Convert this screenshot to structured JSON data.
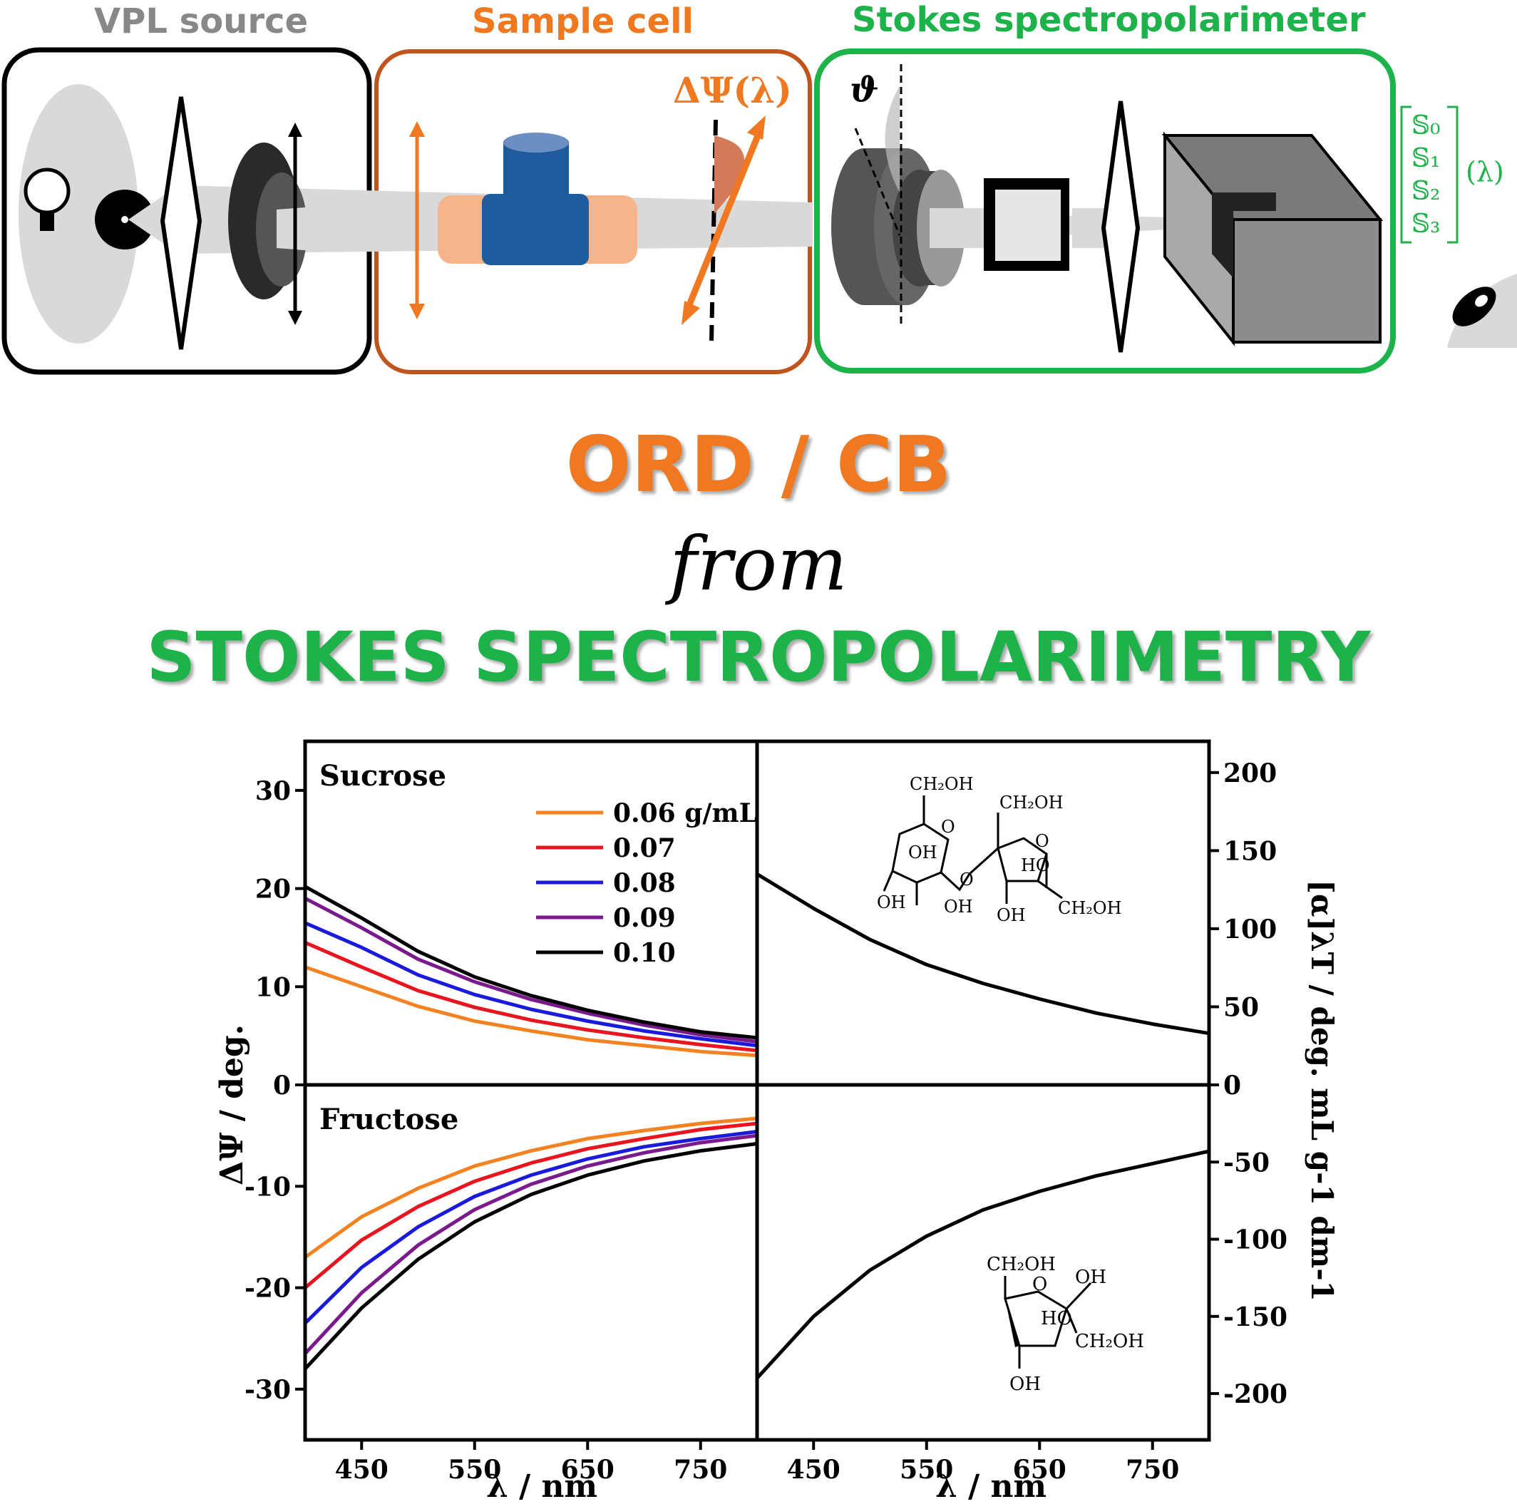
{
  "schematic": {
    "source_label": "VPL source",
    "sample_label": "Sample cell",
    "polarimeter_label": "Stokes spectropolarimeter",
    "rotation_label": "ΔΨ(λ)",
    "analyzer_angle_label": "ϑ",
    "stokes": [
      "𝕊₀",
      "𝕊₁",
      "𝕊₂",
      "𝕊₃"
    ],
    "stokes_suffix": "(λ)",
    "colors": {
      "source": "#888888",
      "sample": "#f07820",
      "sample_box": "#c0541c",
      "polarimeter": "#1db34a"
    }
  },
  "headline": {
    "line1": "ORD / CB",
    "line2": "from",
    "line3": "STOKES SPECTROPOLARIMETRY"
  },
  "chart_data": [
    {
      "type": "line",
      "panel": "top-left",
      "label": "Sucrose",
      "ylabel": "ΔΨ / deg.",
      "ylim": [
        0,
        35
      ],
      "yticks": [
        0,
        10,
        20,
        30
      ],
      "xlim": [
        400,
        800
      ],
      "x": [
        400,
        450,
        500,
        550,
        600,
        650,
        700,
        750,
        800
      ],
      "series": [
        {
          "name": "0.06 g/mL",
          "color": "#f58220",
          "values": [
            12.0,
            10.0,
            8.0,
            6.5,
            5.5,
            4.6,
            4.0,
            3.4,
            3.0
          ]
        },
        {
          "name": "0.07",
          "color": "#e8141e",
          "values": [
            14.5,
            12.0,
            9.6,
            7.9,
            6.6,
            5.6,
            4.8,
            4.1,
            3.5
          ]
        },
        {
          "name": "0.08",
          "color": "#1a1adc",
          "values": [
            16.5,
            14.0,
            11.2,
            9.2,
            7.7,
            6.5,
            5.5,
            4.7,
            4.0
          ]
        },
        {
          "name": "0.09",
          "color": "#7a1a8c",
          "values": [
            19.0,
            16.0,
            12.8,
            10.5,
            8.7,
            7.3,
            6.1,
            5.1,
            4.4
          ]
        },
        {
          "name": "0.10",
          "color": "#000000",
          "values": [
            20.2,
            17.0,
            13.6,
            11.0,
            9.1,
            7.6,
            6.4,
            5.4,
            4.8
          ]
        }
      ],
      "legend": "top-right"
    },
    {
      "type": "line",
      "panel": "bottom-left",
      "label": "Fructose",
      "ylim": [
        -35,
        0
      ],
      "yticks": [
        -10,
        -20,
        -30
      ],
      "xlim": [
        400,
        800
      ],
      "x": [
        400,
        450,
        500,
        550,
        600,
        650,
        700,
        750,
        800
      ],
      "xticks": [
        450,
        550,
        650,
        750
      ],
      "xlabel": "λ / nm",
      "series": [
        {
          "name": "0.06 g/mL",
          "color": "#f58220",
          "values": [
            -17.0,
            -13.0,
            -10.2,
            -8.0,
            -6.5,
            -5.3,
            -4.5,
            -3.8,
            -3.3
          ]
        },
        {
          "name": "0.07",
          "color": "#e8141e",
          "values": [
            -20.0,
            -15.3,
            -12.0,
            -9.5,
            -7.7,
            -6.3,
            -5.3,
            -4.4,
            -3.8
          ]
        },
        {
          "name": "0.08",
          "color": "#1a1adc",
          "values": [
            -23.5,
            -18.0,
            -14.0,
            -11.0,
            -8.9,
            -7.3,
            -6.1,
            -5.3,
            -4.6
          ]
        },
        {
          "name": "0.09",
          "color": "#7a1a8c",
          "values": [
            -26.5,
            -20.5,
            -15.8,
            -12.3,
            -9.8,
            -8.0,
            -6.7,
            -5.7,
            -5.0
          ]
        },
        {
          "name": "0.10",
          "color": "#000000",
          "values": [
            -28.0,
            -22.0,
            -17.2,
            -13.5,
            -10.8,
            -8.9,
            -7.5,
            -6.5,
            -5.8
          ]
        }
      ]
    },
    {
      "type": "line",
      "panel": "top-right",
      "ylim": [
        0,
        220
      ],
      "yticks": [
        0,
        50,
        100,
        150,
        200
      ],
      "xlim": [
        400,
        800
      ],
      "x": [
        400,
        450,
        500,
        550,
        600,
        650,
        700,
        750,
        800
      ],
      "series": [
        {
          "color": "#000000",
          "values": [
            135,
            113,
            93,
            77,
            65,
            55,
            46,
            39,
            33
          ]
        }
      ]
    },
    {
      "type": "line",
      "panel": "bottom-right",
      "ylim": [
        -230,
        0
      ],
      "yticks": [
        -50,
        -100,
        -150,
        -200
      ],
      "xlim": [
        400,
        800
      ],
      "x": [
        400,
        450,
        500,
        550,
        600,
        650,
        700,
        750,
        800
      ],
      "xticks": [
        450,
        550,
        650,
        750
      ],
      "xlabel": "λ / nm",
      "ylabel": "[α]λT / deg. mL g-1 dm-1",
      "series": [
        {
          "color": "#000000",
          "values": [
            -190,
            -150,
            -120,
            -98,
            -81,
            -69,
            -59,
            -51,
            -43
          ]
        }
      ]
    }
  ],
  "structures": {
    "sucrose": [
      "CH₂OH",
      "CH₂OH",
      "OH",
      "HO",
      "OH",
      "CH₂OH",
      "OH",
      "OH",
      "O",
      "O",
      "O"
    ],
    "fructose": [
      "CH₂OH",
      "OH",
      "HO",
      "CH₂OH",
      "OH",
      "O"
    ]
  }
}
